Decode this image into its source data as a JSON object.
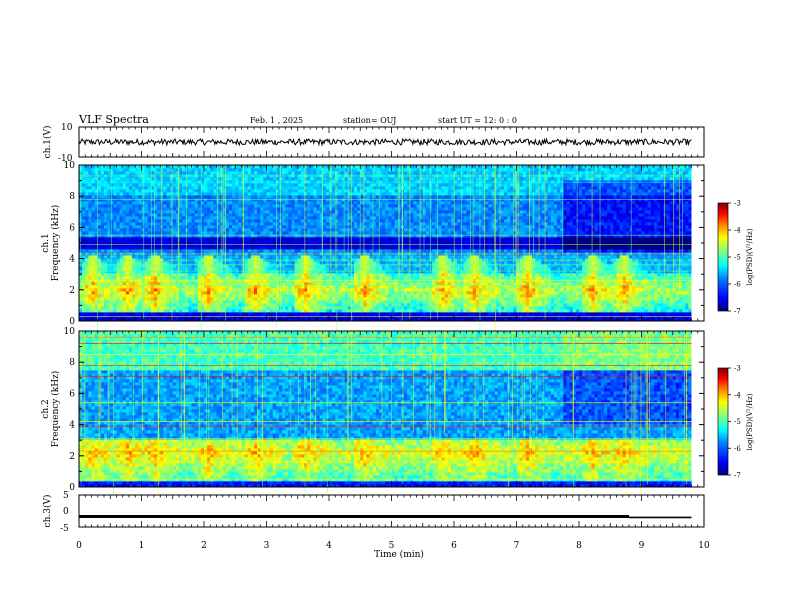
{
  "header": {
    "title": "VLF Spectra",
    "date": "Feb. 1 , 2025",
    "station": "station= OUJ",
    "start_ut": "start  UT  =   12: 0  : 0"
  },
  "colors": {
    "spectrogram_colormap": [
      "#00007f",
      "#0000ff",
      "#0080ff",
      "#00ffff",
      "#80ff80",
      "#ffff00",
      "#ff8000",
      "#ff0000",
      "#7f0000"
    ],
    "trace": "#000000"
  },
  "chart_data": [
    {
      "type": "line",
      "name": "ch1-waveform",
      "ylabel": "ch.1(V)",
      "ylim": [
        -10,
        10
      ],
      "yticks": [
        "10",
        "-10"
      ],
      "xlim": [
        0,
        10
      ],
      "level": 0
    },
    {
      "type": "heatmap",
      "name": "ch1-spectrogram",
      "ylabel": "ch.1\nFrequency (kHz)",
      "ylim": [
        0,
        10
      ],
      "yticks": [
        "0",
        "2",
        "4",
        "6",
        "8",
        "10"
      ],
      "xlim": [
        0,
        10
      ],
      "data_end_min": 9.8,
      "colorbar": {
        "label": "log(PSD)(V²/Hz)",
        "ticks": [
          "-3",
          "-4",
          "-5",
          "-6",
          "-7"
        ],
        "range": [
          -7,
          -3
        ]
      },
      "chorus_burst_times_min": [
        0.15,
        0.7,
        1.15,
        2.0,
        2.75,
        3.55,
        4.5,
        5.75,
        6.25,
        7.1,
        8.15,
        8.65
      ]
    },
    {
      "type": "heatmap",
      "name": "ch2-spectrogram",
      "ylabel": "ch.2\nFrequency (kHz)",
      "ylim": [
        0,
        10
      ],
      "yticks": [
        "0",
        "2",
        "4",
        "6",
        "8",
        "10"
      ],
      "xlim": [
        0,
        10
      ],
      "data_end_min": 9.8,
      "colorbar": {
        "label": "log(PSD)(V²/Hz)",
        "ticks": [
          "-3",
          "-4",
          "-5",
          "-6",
          "-7"
        ],
        "range": [
          -7,
          -3
        ]
      }
    },
    {
      "type": "line",
      "name": "ch3-waveform",
      "ylabel": "ch.3(V)",
      "ylim": [
        -5,
        5
      ],
      "yticks": [
        "5",
        "0",
        "-5"
      ],
      "xlim": [
        0,
        10
      ],
      "segments": [
        {
          "x": [
            0,
            8.8
          ],
          "y": [
            -1.7,
            -1.7
          ]
        },
        {
          "x": [
            8.8,
            9.8
          ],
          "y": [
            -2.0,
            -2.0
          ]
        }
      ]
    }
  ],
  "xaxis": {
    "label": "Time (min)",
    "ticks": [
      "0",
      "1",
      "2",
      "3",
      "4",
      "5",
      "6",
      "7",
      "8",
      "9",
      "10"
    ]
  }
}
